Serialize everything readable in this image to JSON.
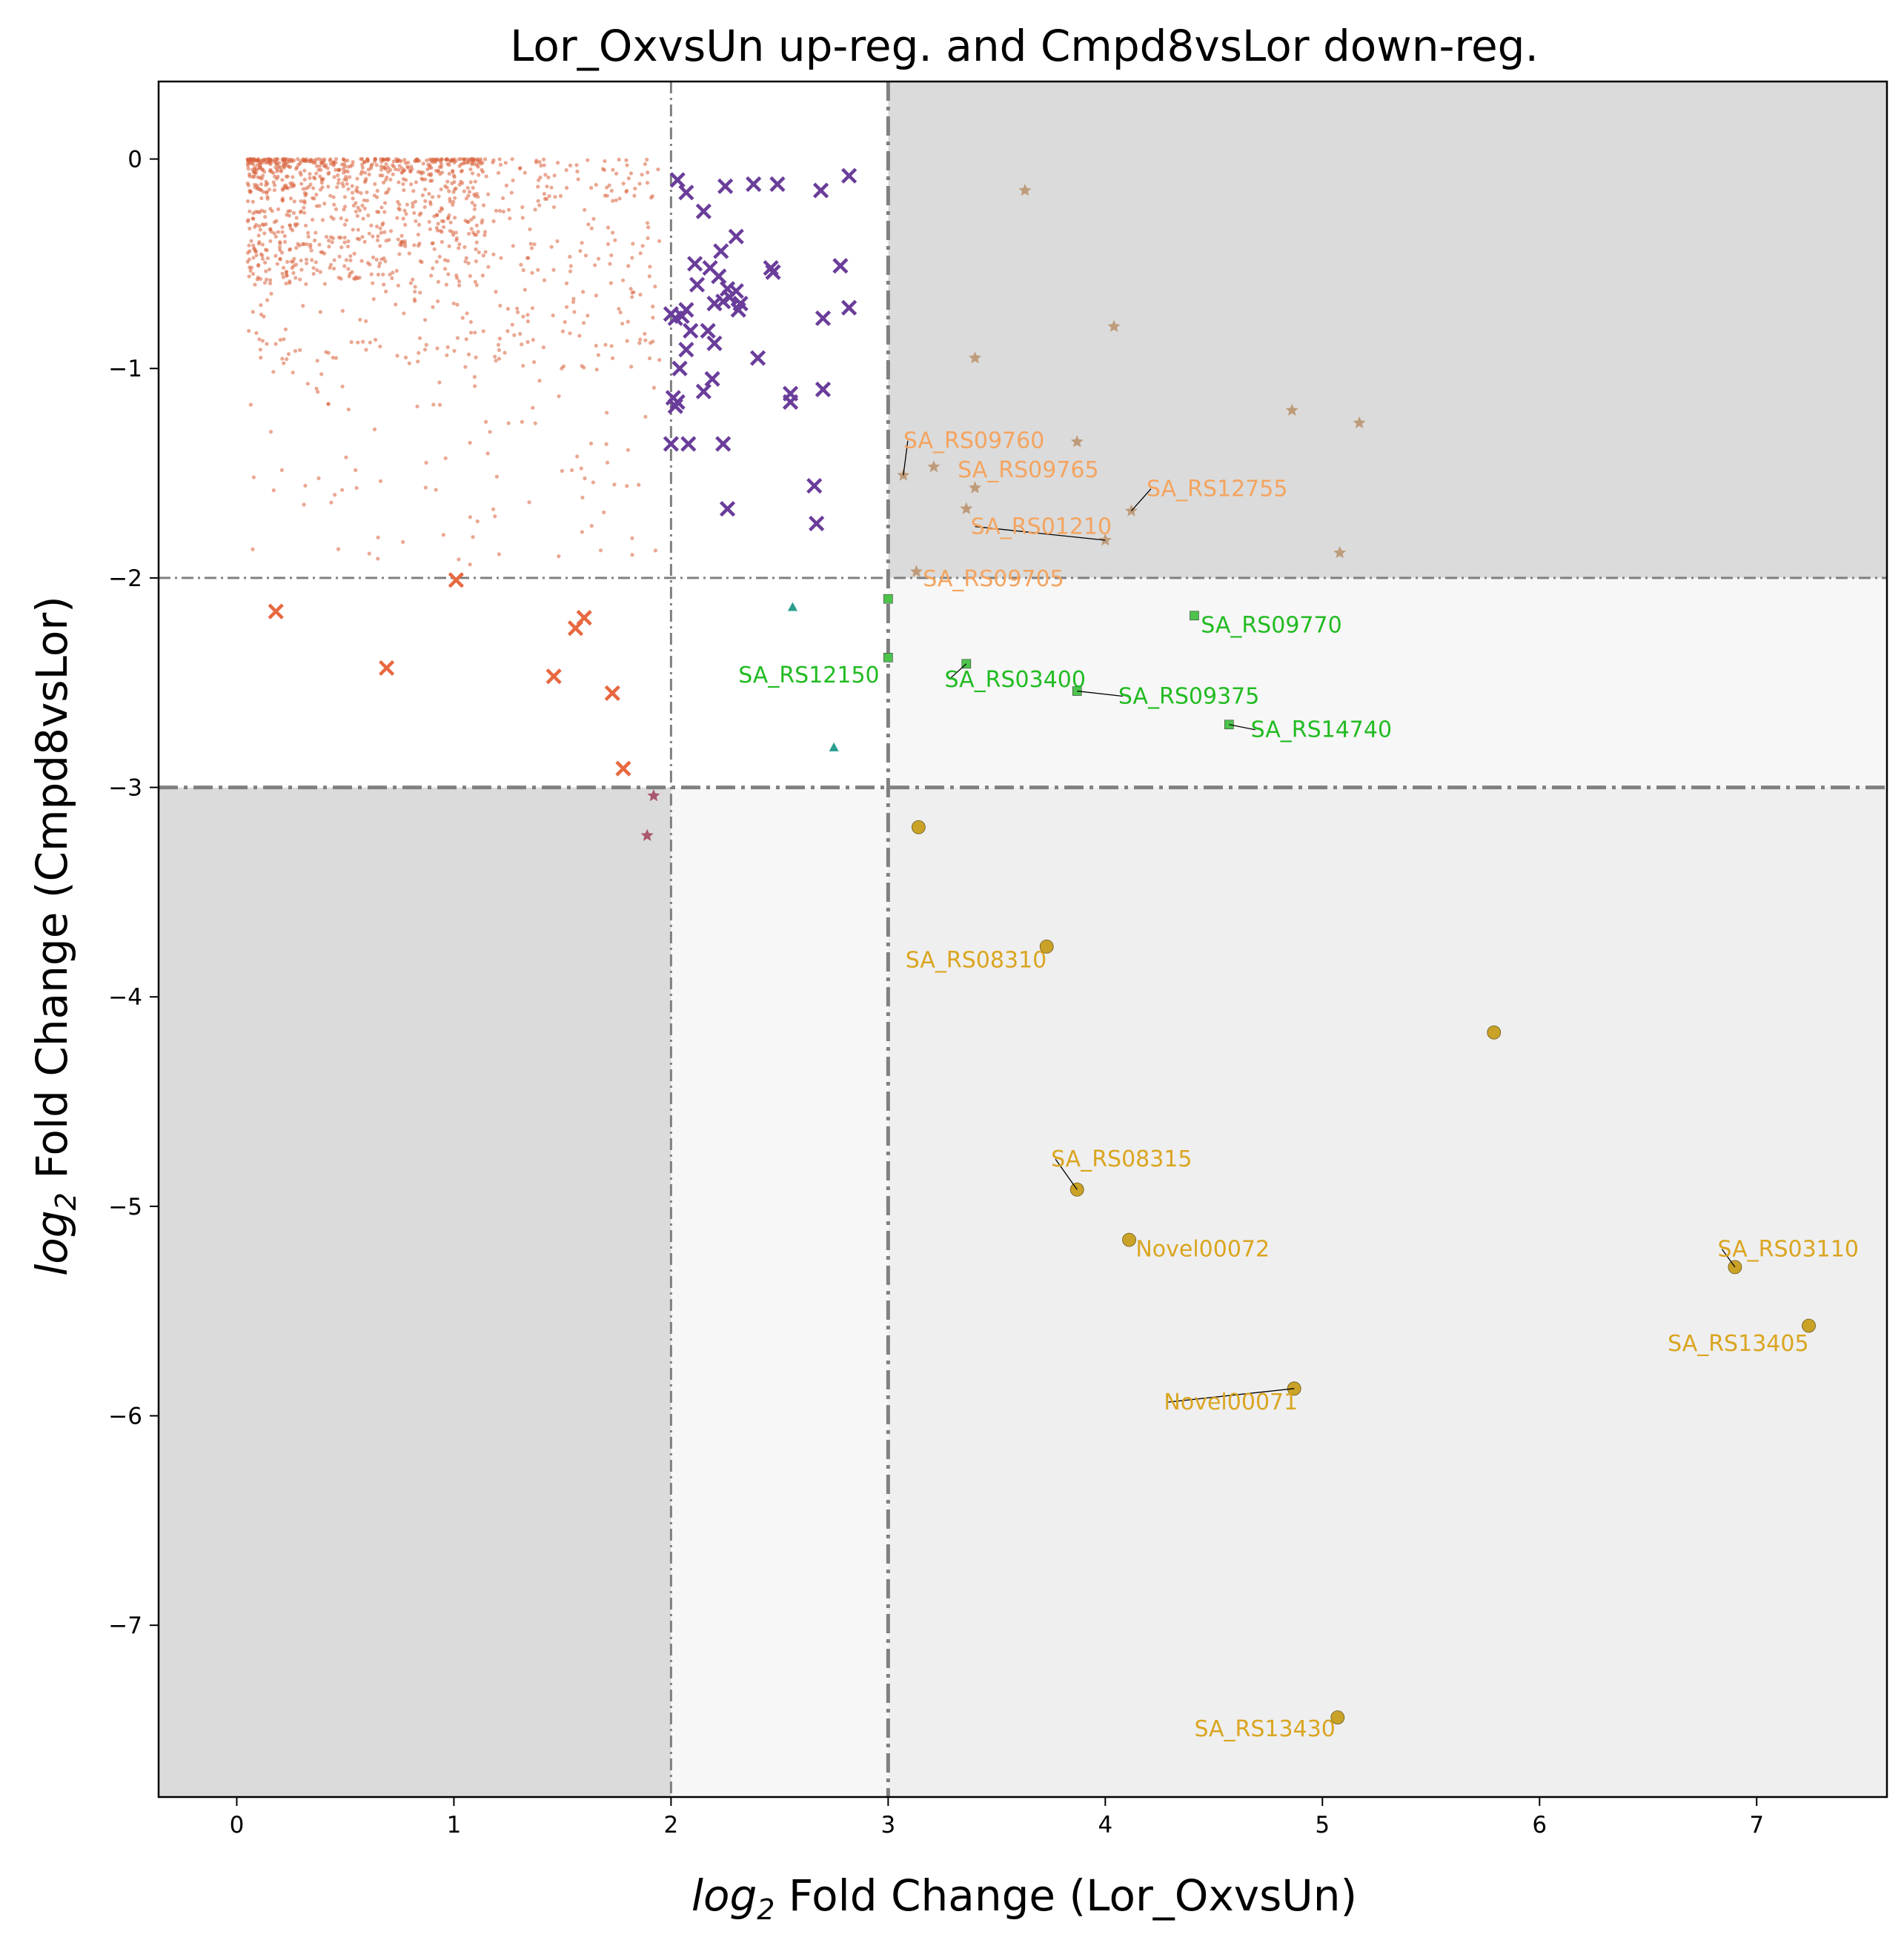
{
  "chart_data": {
    "type": "scatter",
    "title": "Lor_OxvsUn up-reg. and Cmpd8vsLor down-reg.",
    "xlabel": {
      "prefix": "log",
      "sub": "2",
      "suffix": " Fold Change (Lor_OxvsUn)"
    },
    "ylabel": {
      "prefix": "log",
      "sub": "2",
      "suffix": " Fold Change (Cmpd8vsLor)"
    },
    "xlim": [
      -0.36,
      7.6
    ],
    "ylim": [
      -7.82,
      0.37
    ],
    "xticks": [
      0,
      1,
      2,
      3,
      4,
      5,
      6,
      7
    ],
    "yticks": [
      0,
      -1,
      -2,
      -3,
      -4,
      -5,
      -6,
      -7
    ],
    "tick_labels_x": [
      "0",
      "1",
      "2",
      "3",
      "4",
      "5",
      "6",
      "7"
    ],
    "tick_labels_y": [
      "0",
      "−1",
      "−2",
      "−3",
      "−4",
      "−5",
      "−6",
      "−7"
    ],
    "thresholds": {
      "x_minor": 2,
      "x_major": 3,
      "y_minor": -2,
      "y_major": -3
    },
    "regions": [
      {
        "x": [
          3,
          7.6
        ],
        "y": [
          -2,
          0.37
        ],
        "fill": "#dbdbdb"
      },
      {
        "x": [
          3,
          7.6
        ],
        "y": [
          -3,
          -2
        ],
        "fill": "#f7f7f7"
      },
      {
        "x": [
          3,
          7.6
        ],
        "y": [
          -7.82,
          -3
        ],
        "fill": "#efefef"
      },
      {
        "x": [
          2,
          3
        ],
        "y": [
          -7.82,
          -3
        ],
        "fill": "#f7f7f7"
      },
      {
        "x": [
          -0.36,
          2
        ],
        "y": [
          -7.82,
          -3
        ],
        "fill": "#dbdbdb"
      }
    ],
    "colors": {
      "background_dots": "#d9603b",
      "purple_x": "#6a3d9a",
      "orange_x": "#e8683f",
      "teal_triangle": "#2a9d8f",
      "green_square": "#4cc44c",
      "tan_star": "#b8906a",
      "maroon_star": "#a0405a",
      "gold_circle": "#c9a227",
      "orange_label": "#f4a460",
      "green_label": "#22bb22",
      "gold_label": "#daa520"
    },
    "series": [
      {
        "marker": "x",
        "color": "#6a3d9a",
        "size": 9,
        "points": [
          [
            2.03,
            -0.1
          ],
          [
            2.07,
            -0.16
          ],
          [
            2.25,
            -0.13
          ],
          [
            2.38,
            -0.12
          ],
          [
            2.49,
            -0.12
          ],
          [
            2.69,
            -0.15
          ],
          [
            2.82,
            -0.08
          ],
          [
            2.15,
            -0.25
          ],
          [
            2.3,
            -0.37
          ],
          [
            2.46,
            -0.52
          ],
          [
            2.47,
            -0.54
          ],
          [
            2.11,
            -0.5
          ],
          [
            2.23,
            -0.44
          ],
          [
            2.18,
            -0.52
          ],
          [
            2.22,
            -0.56
          ],
          [
            2.26,
            -0.62
          ],
          [
            2.3,
            -0.63
          ],
          [
            2.32,
            -0.69
          ],
          [
            2.27,
            -0.66
          ],
          [
            2.2,
            -0.69
          ],
          [
            2.24,
            -0.68
          ],
          [
            2.31,
            -0.72
          ],
          [
            2.12,
            -0.6
          ],
          [
            2.07,
            -0.72
          ],
          [
            2.05,
            -0.75
          ],
          [
            2.02,
            -0.76
          ],
          [
            2.0,
            -0.74
          ],
          [
            2.09,
            -0.82
          ],
          [
            2.17,
            -0.82
          ],
          [
            2.2,
            -0.88
          ],
          [
            2.07,
            -0.91
          ],
          [
            2.04,
            -1.0
          ],
          [
            2.19,
            -1.05
          ],
          [
            2.15,
            -1.11
          ],
          [
            2.4,
            -0.95
          ],
          [
            2.55,
            -1.12
          ],
          [
            2.55,
            -1.16
          ],
          [
            2.7,
            -1.1
          ],
          [
            2.01,
            -1.14
          ],
          [
            2.03,
            -1.16
          ],
          [
            2.02,
            -1.18
          ],
          [
            2.0,
            -1.36
          ],
          [
            2.08,
            -1.36
          ],
          [
            2.24,
            -1.36
          ],
          [
            2.78,
            -0.51
          ],
          [
            2.82,
            -0.71
          ],
          [
            2.7,
            -0.76
          ],
          [
            2.66,
            -1.56
          ],
          [
            2.67,
            -1.74
          ],
          [
            2.26,
            -1.67
          ]
        ]
      },
      {
        "marker": "x",
        "color": "#e8683f",
        "size": 9,
        "points": [
          [
            0.18,
            -2.16
          ],
          [
            0.69,
            -2.43
          ],
          [
            1.01,
            -2.01
          ],
          [
            1.46,
            -2.47
          ],
          [
            1.56,
            -2.24
          ],
          [
            1.6,
            -2.19
          ],
          [
            1.73,
            -2.55
          ],
          [
            1.78,
            -2.91
          ]
        ]
      },
      {
        "marker": "triangle",
        "color": "#2a9d8f",
        "size": 10,
        "points": [
          [
            2.56,
            -2.14
          ],
          [
            2.75,
            -2.81
          ]
        ]
      },
      {
        "marker": "square",
        "color": "#4cc44c",
        "size": 12,
        "points": [
          [
            3.0,
            -2.1
          ],
          [
            3.0,
            -2.38
          ],
          [
            3.36,
            -2.41
          ],
          [
            3.87,
            -2.54
          ],
          [
            4.41,
            -2.18
          ],
          [
            4.57,
            -2.7
          ]
        ]
      },
      {
        "marker": "star",
        "color": "#b8906a",
        "size": 9,
        "points": [
          [
            3.63,
            -0.15
          ],
          [
            4.04,
            -0.8
          ],
          [
            3.4,
            -0.95
          ],
          [
            4.86,
            -1.2
          ],
          [
            5.17,
            -1.26
          ],
          [
            3.87,
            -1.35
          ],
          [
            3.07,
            -1.51
          ],
          [
            3.21,
            -1.47
          ],
          [
            3.4,
            -1.57
          ],
          [
            3.36,
            -1.67
          ],
          [
            4.12,
            -1.68
          ],
          [
            4.0,
            -1.82
          ],
          [
            5.08,
            -1.88
          ],
          [
            3.13,
            -1.97
          ]
        ]
      },
      {
        "marker": "star",
        "color": "#a0405a",
        "size": 9,
        "points": [
          [
            1.92,
            -3.04
          ],
          [
            1.89,
            -3.23
          ]
        ]
      },
      {
        "marker": "circle",
        "color": "#c9a227",
        "size": 9,
        "points": [
          [
            3.14,
            -3.19
          ],
          [
            3.73,
            -3.76
          ],
          [
            5.79,
            -4.17
          ],
          [
            3.87,
            -4.92
          ],
          [
            4.11,
            -5.16
          ],
          [
            6.9,
            -5.29
          ],
          [
            7.24,
            -5.57
          ],
          [
            4.87,
            -5.87
          ],
          [
            5.07,
            -7.44
          ]
        ]
      }
    ],
    "annotations": [
      {
        "text": "SA_RS09760",
        "point": [
          3.07,
          -1.51
        ],
        "label": [
          3.07,
          -1.38
        ],
        "color": "#f4a460",
        "anchor": "start",
        "line": true
      },
      {
        "text": "SA_RS09765",
        "point": [
          3.21,
          -1.47
        ],
        "label": [
          3.32,
          -1.52
        ],
        "color": "#f4a460",
        "anchor": "start",
        "line": false
      },
      {
        "text": "SA_RS12755",
        "point": [
          4.12,
          -1.68
        ],
        "label": [
          4.19,
          -1.61
        ],
        "color": "#f4a460",
        "anchor": "start",
        "line": true
      },
      {
        "text": "SA_RS01210",
        "point": [
          4.0,
          -1.82
        ],
        "label": [
          3.38,
          -1.79
        ],
        "color": "#f4a460",
        "anchor": "start",
        "line": true
      },
      {
        "text": "SA_RS09705",
        "point": [
          3.13,
          -1.97
        ],
        "label": [
          3.16,
          -2.04
        ],
        "color": "#f4a460",
        "anchor": "start",
        "line": false
      },
      {
        "text": "SA_RS09770",
        "point": [
          4.41,
          -2.18
        ],
        "label": [
          4.44,
          -2.26
        ],
        "color": "#22bb22",
        "anchor": "start",
        "line": false
      },
      {
        "text": "SA_RS12150",
        "point": [
          3.0,
          -2.38
        ],
        "label": [
          2.31,
          -2.5
        ],
        "color": "#22bb22",
        "anchor": "start",
        "line": false
      },
      {
        "text": "SA_RS03400",
        "point": [
          3.36,
          -2.41
        ],
        "label": [
          3.26,
          -2.52
        ],
        "color": "#22bb22",
        "anchor": "start",
        "line": true
      },
      {
        "text": "SA_RS09375",
        "point": [
          3.87,
          -2.54
        ],
        "label": [
          4.06,
          -2.6
        ],
        "color": "#22bb22",
        "anchor": "start",
        "line": true
      },
      {
        "text": "SA_RS14740",
        "point": [
          4.57,
          -2.7
        ],
        "label": [
          4.67,
          -2.76
        ],
        "color": "#22bb22",
        "anchor": "start",
        "line": true
      },
      {
        "text": "SA_RS08310",
        "point": [
          3.73,
          -3.76
        ],
        "label": [
          3.08,
          -3.86
        ],
        "color": "#daa520",
        "anchor": "start",
        "line": false
      },
      {
        "text": "SA_RS08315",
        "point": [
          3.87,
          -4.92
        ],
        "label": [
          3.75,
          -4.81
        ],
        "color": "#daa520",
        "anchor": "start",
        "line": true
      },
      {
        "text": "Novel00072",
        "point": [
          4.11,
          -5.16
        ],
        "label": [
          4.14,
          -5.24
        ],
        "color": "#daa520",
        "anchor": "start",
        "line": false
      },
      {
        "text": "SA_RS03110",
        "point": [
          6.9,
          -5.29
        ],
        "label": [
          6.82,
          -5.24
        ],
        "color": "#daa520",
        "anchor": "start",
        "line": true
      },
      {
        "text": "SA_RS13405",
        "point": [
          7.24,
          -5.57
        ],
        "label": [
          6.59,
          -5.69
        ],
        "color": "#daa520",
        "anchor": "start",
        "line": false
      },
      {
        "text": "Novel00071",
        "point": [
          4.87,
          -5.87
        ],
        "label": [
          4.27,
          -5.97
        ],
        "color": "#daa520",
        "anchor": "start",
        "line": true
      },
      {
        "text": "SA_RS13430",
        "point": [
          5.07,
          -7.44
        ],
        "label": [
          4.41,
          -7.53
        ],
        "color": "#daa520",
        "anchor": "start",
        "line": false
      }
    ]
  }
}
